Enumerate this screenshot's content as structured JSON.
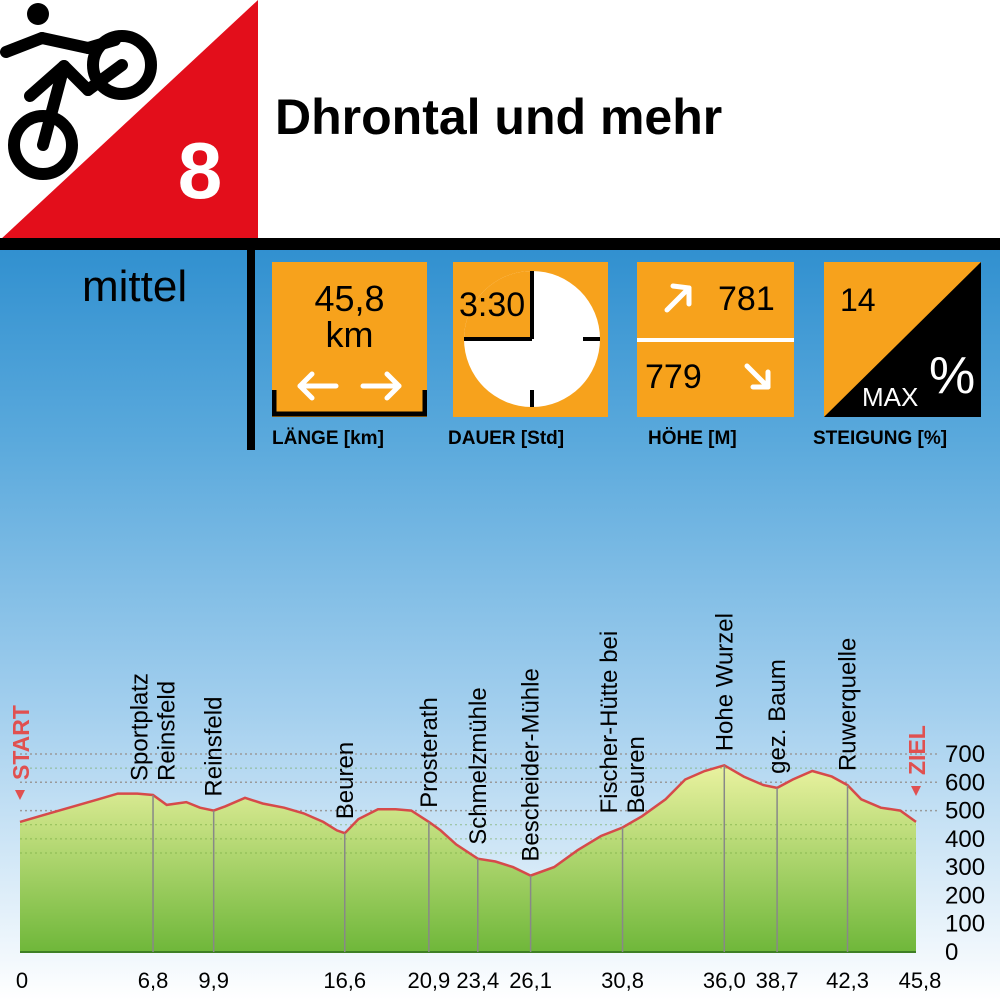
{
  "header": {
    "route_number": "8",
    "title": "Dhrontal und mehr",
    "difficulty": "mittel",
    "icon": "cyclist-icon",
    "accent_color": "#e30e1b"
  },
  "stats": {
    "length": {
      "value": "45,8",
      "unit": "km",
      "label": "LÄNGE [km]"
    },
    "duration": {
      "value": "3:30",
      "label": "DAUER [Std]"
    },
    "elevation": {
      "up": "781",
      "down": "779",
      "label": "HÖHE [M]"
    },
    "gradient": {
      "value": "14",
      "max_label": "MAX",
      "percent_sign": "%",
      "label": "STEIGUNG [%]"
    },
    "box_color": "#f7a21c"
  },
  "chart_data": {
    "type": "area",
    "start_label": "START",
    "end_label": "ZIEL",
    "fill_top_color": "#eaf2a0",
    "fill_bottom_color": "#6fb73a",
    "line_color": "#d64a4a",
    "ylim": [
      0,
      700
    ],
    "yticks": [
      "0",
      "100",
      "200",
      "300",
      "400",
      "500",
      "600",
      "700"
    ],
    "xlim": [
      0,
      45.8
    ],
    "dashed_grid_at": [
      500,
      600,
      700
    ],
    "x": [
      0,
      1,
      2,
      3,
      4,
      5,
      6,
      6.8,
      7.5,
      8.5,
      9.2,
      9.9,
      10.5,
      11.5,
      12.4,
      13.5,
      14.5,
      15.5,
      16.2,
      16.6,
      17.3,
      18.3,
      19.2,
      20.0,
      20.9,
      21.5,
      22.3,
      23.4,
      24.3,
      25.2,
      26.1,
      27.3,
      28.5,
      29.7,
      30.8,
      31.8,
      33.0,
      34.0,
      35.0,
      36.0,
      37.0,
      38.0,
      38.7,
      39.5,
      40.5,
      41.5,
      42.3,
      43.0,
      44.0,
      45.0,
      45.8
    ],
    "y": [
      460,
      480,
      500,
      520,
      540,
      560,
      560,
      555,
      520,
      530,
      510,
      500,
      515,
      545,
      525,
      510,
      490,
      460,
      430,
      420,
      470,
      505,
      505,
      500,
      460,
      430,
      380,
      330,
      320,
      300,
      270,
      300,
      360,
      410,
      440,
      480,
      540,
      610,
      640,
      660,
      620,
      590,
      580,
      610,
      640,
      620,
      590,
      540,
      510,
      500,
      460
    ],
    "waypoints": [
      {
        "name": "Sportplatz Reinsfeld",
        "x": 6.8,
        "tick": "6,8"
      },
      {
        "name": "Reinsfeld",
        "x": 9.9,
        "tick": "9,9"
      },
      {
        "name": "Beuren",
        "x": 16.6,
        "tick": "16,6"
      },
      {
        "name": "Prosterath",
        "x": 20.9,
        "tick": "20,9"
      },
      {
        "name": "Schmelzmühle",
        "x": 23.4,
        "tick": "23,4"
      },
      {
        "name": "Bescheider-Mühle",
        "x": 26.1,
        "tick": "26,1"
      },
      {
        "name": "Fischer-Hütte bei Beuren",
        "x": 30.8,
        "tick": "30,8"
      },
      {
        "name": "Hohe Wurzel",
        "x": 36.0,
        "tick": "36,0"
      },
      {
        "name": "gez. Baum",
        "x": 38.7,
        "tick": "38,7"
      },
      {
        "name": "Ruwerquelle",
        "x": 42.3,
        "tick": "42,3"
      }
    ],
    "x_end_ticks": [
      {
        "x": 0,
        "tick": "0"
      },
      {
        "x": 45.8,
        "tick": "45,8"
      }
    ]
  }
}
